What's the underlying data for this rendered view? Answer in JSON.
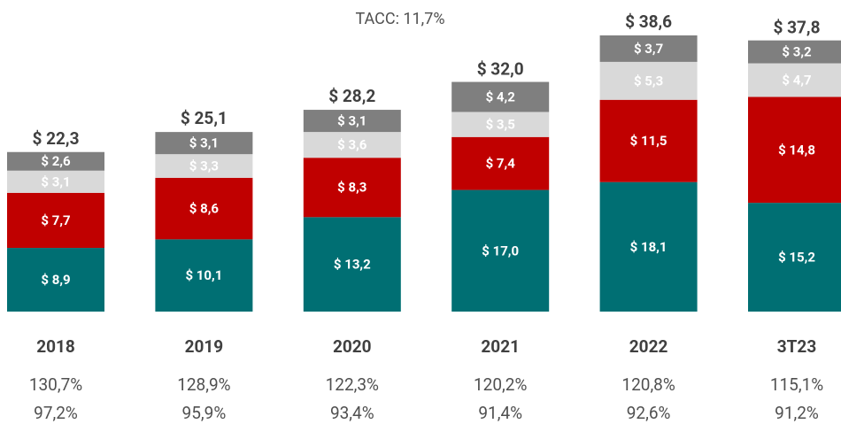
{
  "chart_data": {
    "type": "stacked_bar",
    "subtitle": "TACC: 11,7%",
    "categories": [
      "2018",
      "2019",
      "2020",
      "2021",
      "2022",
      "3T23"
    ],
    "series": [
      {
        "color": "#006f73",
        "values": [
          8.9,
          10.1,
          13.2,
          17.0,
          18.1,
          15.2
        ],
        "value_labels": [
          "$ 8,9",
          "$ 10,1",
          "$ 13,2",
          "$ 17,0",
          "$ 18,1",
          "$ 15,2"
        ]
      },
      {
        "color": "#c00000",
        "values": [
          7.7,
          8.6,
          8.3,
          7.4,
          11.5,
          14.8
        ],
        "value_labels": [
          "$ 7,7",
          "$ 8,6",
          "$ 8,3",
          "$ 7,4",
          "$ 11,5",
          "$ 14,8"
        ]
      },
      {
        "color": "#d9d9d9",
        "values": [
          3.1,
          3.3,
          3.6,
          3.5,
          5.3,
          4.7
        ],
        "value_labels": [
          "$ 3,1",
          "$ 3,3",
          "$ 3,6",
          "$ 3,5",
          "$ 5,3",
          "$ 4,7"
        ]
      },
      {
        "color": "#7f7f7f",
        "values": [
          2.6,
          3.1,
          3.1,
          4.2,
          3.7,
          3.2
        ],
        "value_labels": [
          "$ 2,6",
          "$ 3,1",
          "$ 3,1",
          "$ 4,2",
          "$ 3,7",
          "$ 3,2"
        ]
      }
    ],
    "totals": [
      22.3,
      25.1,
      28.2,
      32.0,
      38.6,
      37.8
    ],
    "total_labels": [
      "$ 22,3",
      "$ 25,1",
      "$ 28,2",
      "$ 32,0",
      "$ 38,6",
      "$ 37,8"
    ],
    "rows": [
      [
        "130,7%",
        "128,9%",
        "122,3%",
        "120,2%",
        "120,8%",
        "115,1%"
      ],
      [
        "97,2%",
        "95,9%",
        "93,4%",
        "91,4%",
        "92,6%",
        "91,2%"
      ]
    ]
  }
}
